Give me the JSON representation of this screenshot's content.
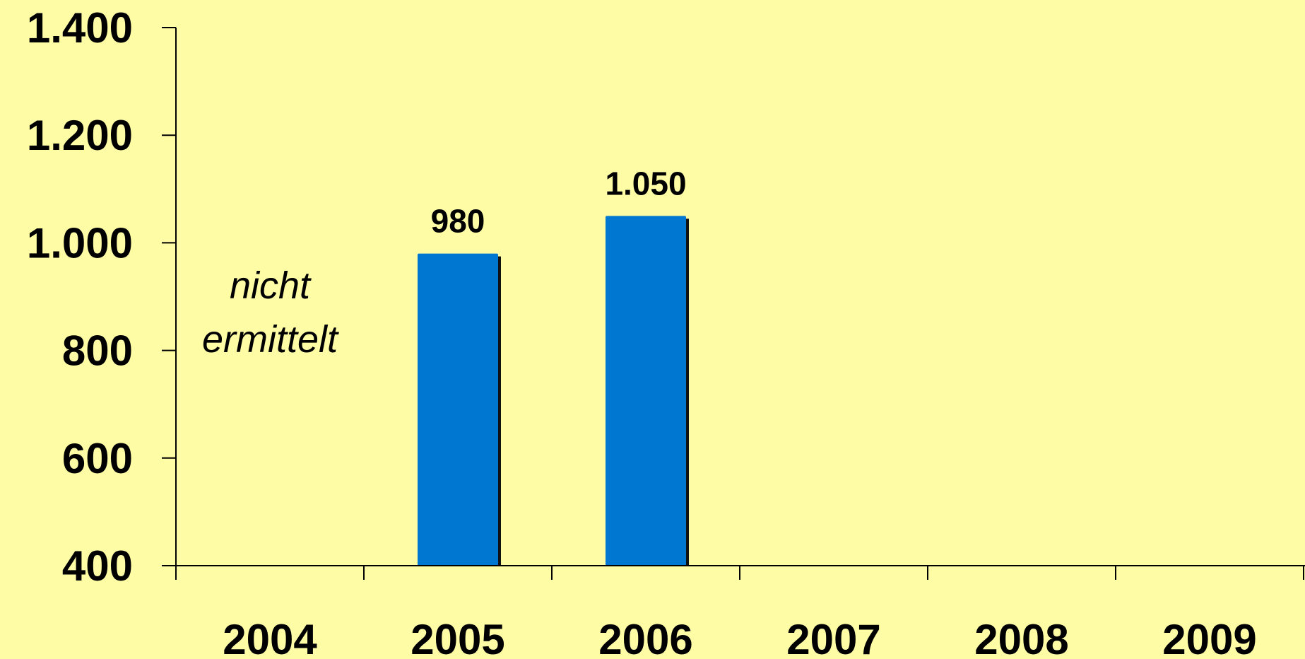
{
  "chart_data": {
    "type": "bar",
    "categories": [
      "2004",
      "2005",
      "2006",
      "2007",
      "2008",
      "2009"
    ],
    "values": [
      null,
      980,
      1050,
      null,
      null,
      null
    ],
    "value_labels": [
      "",
      "980",
      "1.050",
      "",
      "",
      ""
    ],
    "ylim": [
      400,
      1400
    ],
    "yticks": [
      400,
      600,
      800,
      1000,
      1200,
      1400
    ],
    "ytick_labels": [
      "400",
      "600",
      "800",
      "1.000",
      "1.200",
      "1.400"
    ],
    "annotations": [
      {
        "category": "2004",
        "lines": [
          "nicht",
          "ermittelt"
        ]
      }
    ],
    "title": "",
    "xlabel": "",
    "ylabel": "",
    "grid": false,
    "legend": "none"
  },
  "colors": {
    "background": "#FFFCA6",
    "bar": "#0078D2",
    "axis": "#000000"
  }
}
